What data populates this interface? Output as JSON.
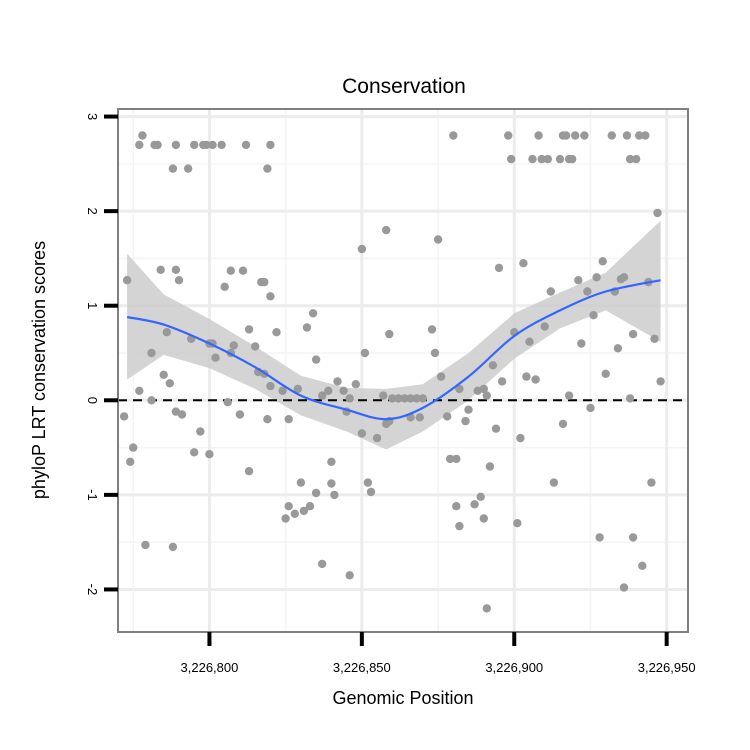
{
  "chart_data": {
    "type": "scatter",
    "title": "Conservation",
    "xlabel": "Genomic Position",
    "ylabel": "phyloP LRT conservation scores",
    "xlim": [
      3226770,
      3226957
    ],
    "ylim": [
      -2.45,
      3.08
    ],
    "xticks": [
      3226800,
      3226850,
      3226900,
      3226950
    ],
    "xtick_labels": [
      "3,226,800",
      "3,226,850",
      "3,226,900",
      "3,226,950"
    ],
    "yticks": [
      -2,
      -1,
      0,
      1,
      2,
      3
    ],
    "ytick_labels": [
      "-2",
      "-1",
      "0",
      "1",
      "2",
      "3"
    ],
    "grid": true,
    "reference_line": {
      "y": 0,
      "style": "dashed"
    },
    "series": [
      {
        "name": "points",
        "type": "scatter",
        "color": "#999999",
        "points": [
          [
            3226778,
            2.8
          ],
          [
            3226777,
            2.7
          ],
          [
            3226782,
            2.7
          ],
          [
            3226783,
            2.7
          ],
          [
            3226789,
            2.7
          ],
          [
            3226795,
            2.7
          ],
          [
            3226798,
            2.7
          ],
          [
            3226799,
            2.7
          ],
          [
            3226801,
            2.7
          ],
          [
            3226804,
            2.7
          ],
          [
            3226812,
            2.7
          ],
          [
            3226820,
            2.7
          ],
          [
            3226788,
            2.45
          ],
          [
            3226793,
            2.45
          ],
          [
            3226819,
            2.45
          ],
          [
            3226773,
            1.27
          ],
          [
            3226784,
            1.38
          ],
          [
            3226789,
            1.38
          ],
          [
            3226790,
            1.27
          ],
          [
            3226805,
            1.2
          ],
          [
            3226807,
            1.37
          ],
          [
            3226811,
            1.37
          ],
          [
            3226817,
            1.25
          ],
          [
            3226818,
            1.25
          ],
          [
            3226820,
            1.1
          ],
          [
            3226794,
            0.65
          ],
          [
            3226800,
            0.6
          ],
          [
            3226801,
            0.6
          ],
          [
            3226808,
            0.58
          ],
          [
            3226813,
            0.75
          ],
          [
            3226815,
            0.57
          ],
          [
            3226781,
            0.5
          ],
          [
            3226802,
            0.45
          ],
          [
            3226786,
            0.72
          ],
          [
            3226822,
            0.72
          ],
          [
            3226807,
            0.5
          ],
          [
            3226785,
            0.27
          ],
          [
            3226787,
            0.18
          ],
          [
            3226816,
            0.3
          ],
          [
            3226818,
            0.28
          ],
          [
            3226820,
            0.15
          ],
          [
            3226777,
            0.1
          ],
          [
            3226781,
            0
          ],
          [
            3226789,
            -0.12
          ],
          [
            3226791,
            -0.15
          ],
          [
            3226806,
            -0.02
          ],
          [
            3226810,
            -0.15
          ],
          [
            3226819,
            -0.2
          ],
          [
            3226772,
            -0.17
          ],
          [
            3226775,
            -0.5
          ],
          [
            3226774,
            -0.65
          ],
          [
            3226795,
            -0.55
          ],
          [
            3226797,
            -0.33
          ],
          [
            3226800,
            -0.57
          ],
          [
            3226813,
            -0.75
          ],
          [
            3226779,
            -1.53
          ],
          [
            3226788,
            -1.55
          ],
          [
            3226824,
            0.1
          ],
          [
            3226826,
            -0.2
          ],
          [
            3226829,
            0.12
          ],
          [
            3226832,
            0.77
          ],
          [
            3226834,
            0.92
          ],
          [
            3226835,
            0.43
          ],
          [
            3226837,
            0.05
          ],
          [
            3226839,
            0.1
          ],
          [
            3226840,
            -0.65
          ],
          [
            3226840,
            -0.88
          ],
          [
            3226842,
            0.2
          ],
          [
            3226844,
            0.1
          ],
          [
            3226845,
            -0.12
          ],
          [
            3226846,
            0.02
          ],
          [
            3226848,
            0.17
          ],
          [
            3226850,
            1.6
          ],
          [
            3226850,
            -0.35
          ],
          [
            3226851,
            0.5
          ],
          [
            3226852,
            -0.87
          ],
          [
            3226853,
            -0.97
          ],
          [
            3226855,
            -0.4
          ],
          [
            3226857,
            0.05
          ],
          [
            3226858,
            1.8
          ],
          [
            3226858,
            -0.25
          ],
          [
            3226859,
            0.7
          ],
          [
            3226859,
            -0.22
          ],
          [
            3226825,
            -1.25
          ],
          [
            3226826,
            -1.12
          ],
          [
            3226828,
            -1.2
          ],
          [
            3226830,
            -0.87
          ],
          [
            3226831,
            -1.17
          ],
          [
            3226833,
            -1.12
          ],
          [
            3226835,
            -0.98
          ],
          [
            3226837,
            -1.73
          ],
          [
            3226841,
            -1.0
          ],
          [
            3226846,
            -1.85
          ],
          [
            3226860,
            0.02
          ],
          [
            3226862,
            0.02
          ],
          [
            3226864,
            0.02
          ],
          [
            3226866,
            0.02
          ],
          [
            3226868,
            0.02
          ],
          [
            3226870,
            0.02
          ],
          [
            3226866,
            -0.18
          ],
          [
            3226869,
            -0.18
          ],
          [
            3226873,
            0.75
          ],
          [
            3226874,
            0.5
          ],
          [
            3226875,
            1.7
          ],
          [
            3226876,
            0.25
          ],
          [
            3226878,
            -0.17
          ],
          [
            3226879,
            -0.62
          ],
          [
            3226881,
            -0.62
          ],
          [
            3226882,
            0.12
          ],
          [
            3226884,
            -0.22
          ],
          [
            3226885,
            -0.1
          ],
          [
            3226880,
            2.8
          ],
          [
            3226881,
            -1.12
          ],
          [
            3226882,
            -1.33
          ],
          [
            3226887,
            -1.1
          ],
          [
            3226889,
            -1.02
          ],
          [
            3226890,
            -1.25
          ],
          [
            3226891,
            -2.2
          ],
          [
            3226888,
            0.1
          ],
          [
            3226890,
            0.12
          ],
          [
            3226891,
            0.05
          ],
          [
            3226892,
            -0.7
          ],
          [
            3226893,
            0.37
          ],
          [
            3226894,
            -0.3
          ],
          [
            3226895,
            1.4
          ],
          [
            3226896,
            0.2
          ],
          [
            3226898,
            2.8
          ],
          [
            3226899,
            2.55
          ],
          [
            3226900,
            0.72
          ],
          [
            3226901,
            -1.3
          ],
          [
            3226902,
            -0.4
          ],
          [
            3226903,
            1.45
          ],
          [
            3226904,
            0.25
          ],
          [
            3226905,
            0.62
          ],
          [
            3226906,
            2.55
          ],
          [
            3226907,
            0.22
          ],
          [
            3226908,
            2.8
          ],
          [
            3226909,
            2.55
          ],
          [
            3226910,
            0.78
          ],
          [
            3226911,
            2.55
          ],
          [
            3226912,
            1.15
          ],
          [
            3226913,
            -0.87
          ],
          [
            3226915,
            2.55
          ],
          [
            3226916,
            2.8
          ],
          [
            3226917,
            2.8
          ],
          [
            3226918,
            2.55
          ],
          [
            3226919,
            2.55
          ],
          [
            3226920,
            2.8
          ],
          [
            3226916,
            -0.25
          ],
          [
            3226918,
            0.05
          ],
          [
            3226921,
            1.27
          ],
          [
            3226922,
            0.6
          ],
          [
            3226923,
            2.8
          ],
          [
            3226924,
            1.15
          ],
          [
            3226925,
            -0.08
          ],
          [
            3226926,
            0.9
          ],
          [
            3226927,
            1.3
          ],
          [
            3226928,
            -1.45
          ],
          [
            3226929,
            1.47
          ],
          [
            3226930,
            0.28
          ],
          [
            3226932,
            2.8
          ],
          [
            3226933,
            1.15
          ],
          [
            3226934,
            0.55
          ],
          [
            3226935,
            1.28
          ],
          [
            3226936,
            1.3
          ],
          [
            3226937,
            2.8
          ],
          [
            3226938,
            2.55
          ],
          [
            3226939,
            0.7
          ],
          [
            3226939,
            -1.45
          ],
          [
            3226940,
            2.55
          ],
          [
            3226941,
            2.8
          ],
          [
            3226942,
            -1.75
          ],
          [
            3226943,
            2.8
          ],
          [
            3226944,
            1.25
          ],
          [
            3226936,
            -1.98
          ],
          [
            3226938,
            0.02
          ],
          [
            3226945,
            -0.87
          ],
          [
            3226946,
            0.65
          ],
          [
            3226947,
            1.98
          ],
          [
            3226948,
            0.2
          ]
        ]
      },
      {
        "name": "loess fit",
        "type": "line",
        "color": "#3366ff",
        "band_color": "#cccccc",
        "x": [
          3226773,
          3226785,
          3226800,
          3226815,
          3226830,
          3226845,
          3226858,
          3226870,
          3226885,
          3226900,
          3226915,
          3226930,
          3226948
        ],
        "y": [
          0.88,
          0.8,
          0.6,
          0.35,
          0.05,
          -0.1,
          -0.2,
          -0.08,
          0.25,
          0.68,
          0.95,
          1.15,
          1.27
        ],
        "ymin": [
          0.22,
          0.48,
          0.34,
          0.12,
          -0.16,
          -0.33,
          -0.52,
          -0.33,
          0.0,
          0.44,
          0.76,
          0.95,
          0.62
        ],
        "ymax": [
          1.55,
          1.12,
          0.86,
          0.57,
          0.26,
          0.13,
          0.12,
          0.17,
          0.5,
          0.92,
          1.14,
          1.35,
          1.9
        ]
      }
    ]
  }
}
